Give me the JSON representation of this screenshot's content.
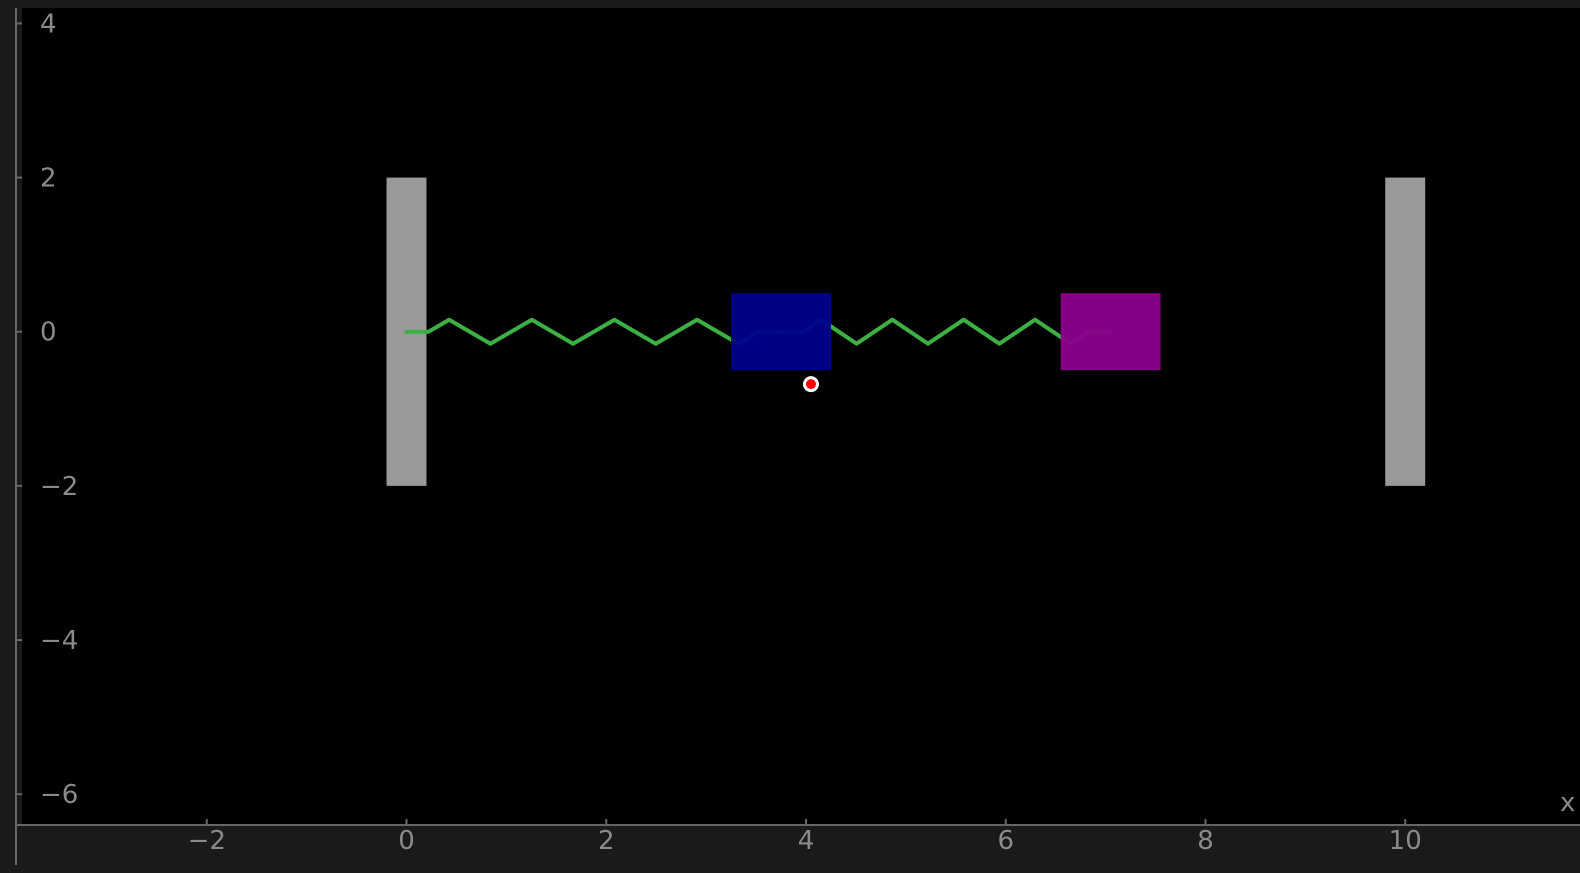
{
  "axes": {
    "x_ticks": [
      -2,
      0,
      2,
      4,
      6,
      8,
      10
    ],
    "y_ticks": [
      4,
      2,
      0,
      -2,
      -4,
      -6
    ],
    "x_label": "x",
    "x_range": [
      -3.85,
      11.75
    ],
    "y_range": [
      -6.4,
      4.2
    ]
  },
  "scene": {
    "walls": [
      {
        "x": -0.2,
        "width": 0.4,
        "y_min": -2,
        "y_max": 2,
        "color": "#999999"
      },
      {
        "x": 9.8,
        "width": 0.4,
        "y_min": -2,
        "y_max": 2,
        "color": "#999999"
      }
    ],
    "masses": [
      {
        "center": 3.75,
        "width": 1.0,
        "y_min": -0.5,
        "y_max": 0.5,
        "color": "#00008b"
      },
      {
        "center": 7.05,
        "width": 1.0,
        "y_min": -0.5,
        "y_max": 0.5,
        "color": "#8b008b"
      }
    ],
    "springs": [
      {
        "from": 0.0,
        "to": 3.75,
        "color": "#3cb043"
      },
      {
        "from": 3.75,
        "to": 7.05,
        "color": "#3cb043"
      }
    ],
    "center_of_mass": {
      "x": 4.05,
      "y": -0.68,
      "color": "#ff0000"
    }
  },
  "colors": {
    "background": "#000000",
    "axis": "#666666",
    "tick_text": "#8a8a8a"
  }
}
